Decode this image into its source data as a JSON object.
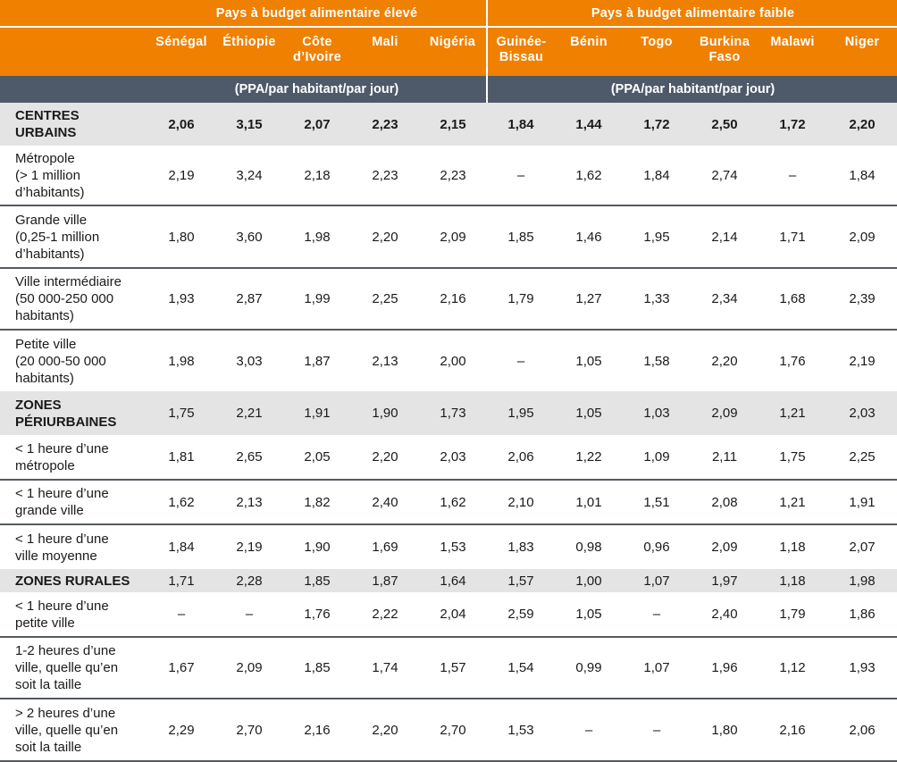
{
  "table": {
    "groups": [
      {
        "label": "Pays à budget alimentaire élevé",
        "unit": "(PPA/par habitant/par jour)"
      },
      {
        "label": "Pays à budget alimentaire faible",
        "unit": "(PPA/par habitant/par jour)"
      }
    ],
    "countries": [
      {
        "line1": "Sénégal",
        "line2": ""
      },
      {
        "line1": "Éthiopie",
        "line2": ""
      },
      {
        "line1": "Côte",
        "line2": "d’Ivoire"
      },
      {
        "line1": "Mali",
        "line2": ""
      },
      {
        "line1": "Nigéria",
        "line2": ""
      },
      {
        "line1": "Guinée-",
        "line2": "Bissau"
      },
      {
        "line1": "Bénin",
        "line2": ""
      },
      {
        "line1": "Togo",
        "line2": ""
      },
      {
        "line1": "Burkina",
        "line2": "Faso"
      },
      {
        "line1": "Malawi",
        "line2": ""
      },
      {
        "line1": "Niger",
        "line2": ""
      }
    ],
    "rows": [
      {
        "label_lines": [
          "CENTRES",
          "URBAINS"
        ],
        "type": "section",
        "values": [
          "2,06",
          "3,15",
          "2,07",
          "2,23",
          "2,15",
          "1,84",
          "1,44",
          "1,72",
          "2,50",
          "1,72",
          "2,20"
        ]
      },
      {
        "label_lines": [
          "Métropole",
          "(> 1 million",
          "d’habitants)"
        ],
        "type": "sub",
        "values": [
          "2,19",
          "3,24",
          "2,18",
          "2,23",
          "2,23",
          "–",
          "1,62",
          "1,84",
          "2,74",
          "–",
          "1,84"
        ]
      },
      {
        "label_lines": [
          "Grande ville",
          "(0,25-1 million",
          "d’habitants)"
        ],
        "type": "sub",
        "values": [
          "1,80",
          "3,60",
          "1,98",
          "2,20",
          "2,09",
          "1,85",
          "1,46",
          "1,95",
          "2,14",
          "1,71",
          "2,09"
        ]
      },
      {
        "label_lines": [
          "Ville intermédiaire",
          "(50 000-250 000",
          "habitants)"
        ],
        "type": "sub",
        "values": [
          "1,93",
          "2,87",
          "1,99",
          "2,25",
          "2,16",
          "1,79",
          "1,27",
          "1,33",
          "2,34",
          "1,68",
          "2,39"
        ]
      },
      {
        "label_lines": [
          "Petite ville",
          "(20 000-50 000",
          "habitants)"
        ],
        "type": "sub",
        "values": [
          "1,98",
          "3,03",
          "1,87",
          "2,13",
          "2,00",
          "–",
          "1,05",
          "1,58",
          "2,20",
          "1,76",
          "2,19"
        ]
      },
      {
        "label_lines": [
          "ZONES",
          "PÉRIURBAINES"
        ],
        "type": "section",
        "values": [
          "1,75",
          "2,21",
          "1,91",
          "1,90",
          "1,73",
          "1,95",
          "1,05",
          "1,03",
          "2,09",
          "1,21",
          "2,03"
        ]
      },
      {
        "label_lines": [
          "< 1 heure d’une",
          "métropole"
        ],
        "type": "sub",
        "values": [
          "1,81",
          "2,65",
          "2,05",
          "2,20",
          "2,03",
          "2,06",
          "1,22",
          "1,09",
          "2,11",
          "1,75",
          "2,25"
        ]
      },
      {
        "label_lines": [
          "< 1 heure d’une",
          "grande ville"
        ],
        "type": "sub",
        "values": [
          "1,62",
          "2,13",
          "1,82",
          "2,40",
          "1,62",
          "2,10",
          "1,01",
          "1,51",
          "2,08",
          "1,21",
          "1,91"
        ]
      },
      {
        "label_lines": [
          "< 1 heure d’une",
          "ville moyenne"
        ],
        "type": "sub",
        "values": [
          "1,84",
          "2,19",
          "1,90",
          "1,69",
          "1,53",
          "1,83",
          "0,98",
          "0,96",
          "2,09",
          "1,18",
          "2,07"
        ]
      },
      {
        "label_lines": [
          "ZONES RURALES"
        ],
        "type": "section",
        "values": [
          "1,71",
          "2,28",
          "1,85",
          "1,87",
          "1,64",
          "1,57",
          "1,00",
          "1,07",
          "1,97",
          "1,18",
          "1,98"
        ]
      },
      {
        "label_lines": [
          "< 1 heure d’une",
          "petite ville"
        ],
        "type": "sub",
        "values": [
          "–",
          "–",
          "1,76",
          "2,22",
          "2,04",
          "2,59",
          "1,05",
          "–",
          "2,40",
          "1,79",
          "1,86"
        ]
      },
      {
        "label_lines": [
          "1-2 heures d’une",
          "ville, quelle qu’en",
          "soit la taille"
        ],
        "type": "sub",
        "values": [
          "1,67",
          "2,09",
          "1,85",
          "1,74",
          "1,57",
          "1,54",
          "0,99",
          "1,07",
          "1,96",
          "1,12",
          "1,93"
        ]
      },
      {
        "label_lines": [
          "> 2 heures d’une",
          "ville, quelle qu’en",
          "soit la taille"
        ],
        "type": "sub",
        "values": [
          "2,29",
          "2,70",
          "2,16",
          "2,20",
          "2,70",
          "1,53",
          "–",
          "–",
          "1,80",
          "2,16",
          "2,06"
        ]
      }
    ]
  },
  "colors": {
    "header_orange": "#F08000",
    "unit_band": "#4E5A6A",
    "section_row": "#E4E4E4",
    "row_rule": "#555A60"
  }
}
